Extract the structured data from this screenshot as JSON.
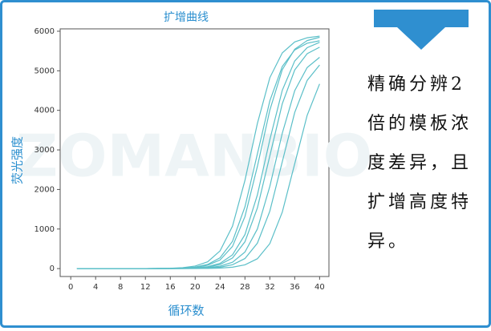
{
  "chart_data": {
    "type": "line",
    "title": "扩增曲线",
    "xlabel": "循环数",
    "ylabel": "荧光强度",
    "watermark": "ZOMANBIO",
    "x": [
      1,
      4,
      8,
      12,
      16,
      18,
      20,
      22,
      24,
      26,
      28,
      30,
      32,
      34,
      36,
      38,
      40
    ],
    "series": [
      {
        "color": "#5bbfc8",
        "values": [
          0,
          0,
          0,
          0,
          9,
          24,
          65,
          171,
          448,
          1074,
          2230,
          3670,
          4826,
          5452,
          5729,
          5835,
          5876
        ]
      },
      {
        "color": "#5bbfc8",
        "values": [
          0,
          0,
          0,
          0,
          5,
          15,
          39,
          104,
          273,
          690,
          1560,
          2900,
          4240,
          5110,
          5527,
          5696,
          5759
        ]
      },
      {
        "color": "#5bbfc8",
        "values": [
          0,
          0,
          0,
          0,
          4,
          11,
          31,
          84,
          218,
          561,
          1316,
          2584,
          4006,
          5027,
          5546,
          5764,
          5847
        ]
      },
      {
        "color": "#5bbfc8",
        "values": [
          0,
          0,
          0,
          0,
          2,
          7,
          18,
          50,
          133,
          348,
          859,
          1862,
          3260,
          4507,
          5249,
          5585,
          5719
        ]
      },
      {
        "color": "#5bbfc8",
        "values": [
          0,
          0,
          0,
          0,
          2,
          5,
          14,
          38,
          103,
          268,
          678,
          1533,
          2850,
          4167,
          5022,
          5432,
          5597
        ]
      },
      {
        "color": "#5bbfc8",
        "values": [
          0,
          0,
          0,
          0,
          1,
          3,
          8,
          23,
          61,
          160,
          418,
          1001,
          2079,
          3421,
          4499,
          5082,
          5341
        ]
      },
      {
        "color": "#5bbfc8",
        "values": [
          0,
          0,
          0,
          0,
          1,
          2,
          5,
          14,
          36,
          97,
          254,
          643,
          1453,
          2700,
          3947,
          4757,
          5146
        ]
      },
      {
        "color": "#5bbfc8",
        "values": [
          0,
          0,
          0,
          0,
          0,
          1,
          2,
          5,
          13,
          36,
          95,
          249,
          631,
          1426,
          2650,
          3874,
          4669
        ]
      }
    ],
    "xlim": [
      -1.7,
      41.5
    ],
    "xticks": [
      0,
      4,
      8,
      12,
      16,
      20,
      24,
      28,
      32,
      36,
      40
    ],
    "ylim": [
      -200,
      6060
    ],
    "yticks": [
      0,
      1000,
      2000,
      3000,
      4000,
      5000,
      6000
    ]
  },
  "note": {
    "lines": [
      "精确分辨2",
      "倍的模板浓",
      "度差异，且",
      "扩增高度特",
      "异。"
    ]
  }
}
